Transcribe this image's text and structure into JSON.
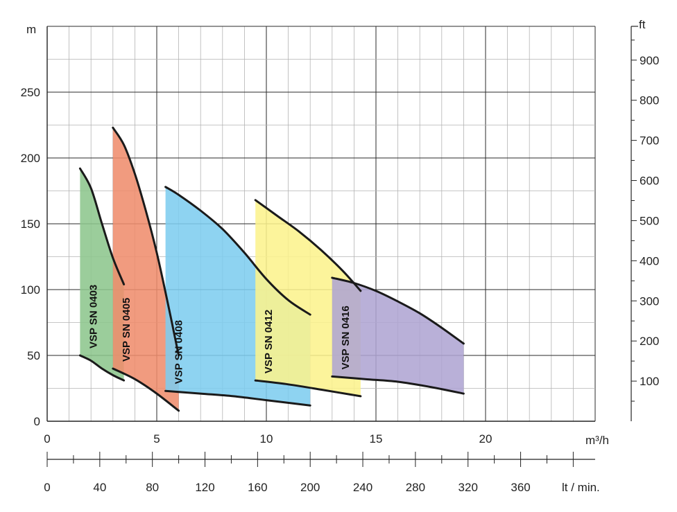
{
  "chart_data": {
    "type": "area",
    "x_unit": "m³/h",
    "y_unit_left": "m",
    "y_unit_right": "ft",
    "x2_unit": "lt / min.",
    "xlim": [
      0,
      25
    ],
    "ylim": [
      0,
      300
    ],
    "x_ticks": [
      "0",
      "5",
      "10",
      "15",
      "20"
    ],
    "y_ticks": [
      "0",
      "50",
      "100",
      "150",
      "200",
      "250"
    ],
    "y_ticks_right": [
      "100",
      "200",
      "300",
      "400",
      "500",
      "600",
      "700",
      "800",
      "900"
    ],
    "x2_ticks": [
      "0",
      "40",
      "80",
      "120",
      "160",
      "200",
      "240",
      "280",
      "320",
      "360"
    ],
    "grid": true,
    "series": [
      {
        "name": "VSP SN 0403",
        "color": "#8cc68c",
        "top": [
          [
            1.5,
            192
          ],
          [
            2.0,
            177
          ],
          [
            2.5,
            150
          ],
          [
            3.0,
            124
          ],
          [
            3.5,
            104
          ]
        ],
        "bottom": [
          [
            1.5,
            50
          ],
          [
            2.0,
            46
          ],
          [
            2.5,
            40
          ],
          [
            3.0,
            35
          ],
          [
            3.5,
            31
          ]
        ]
      },
      {
        "name": "VSP SN 0405",
        "color": "#ef8c6c",
        "top": [
          [
            3.0,
            223
          ],
          [
            3.5,
            210
          ],
          [
            4.0,
            188
          ],
          [
            4.5,
            160
          ],
          [
            5.0,
            128
          ],
          [
            5.5,
            90
          ],
          [
            6.0,
            50
          ]
        ],
        "bottom": [
          [
            3.0,
            40
          ],
          [
            4.0,
            32
          ],
          [
            5.0,
            21
          ],
          [
            6.0,
            8
          ]
        ]
      },
      {
        "name": "VSP SN 0408",
        "color": "#7dcdef",
        "top": [
          [
            5.4,
            178
          ],
          [
            6.0,
            172
          ],
          [
            7.0,
            160
          ],
          [
            8.0,
            146
          ],
          [
            9.0,
            128
          ],
          [
            10.0,
            108
          ],
          [
            11.0,
            92
          ],
          [
            12.0,
            81
          ]
        ],
        "bottom": [
          [
            5.4,
            23
          ],
          [
            7.0,
            21
          ],
          [
            8.5,
            19
          ],
          [
            10.0,
            16
          ],
          [
            12.0,
            12
          ]
        ]
      },
      {
        "name": "VSP SN 0412",
        "color": "#fbf28c",
        "top": [
          [
            9.5,
            168
          ],
          [
            10.5,
            156
          ],
          [
            11.5,
            144
          ],
          [
            12.5,
            130
          ],
          [
            13.5,
            114
          ],
          [
            14.3,
            99
          ]
        ],
        "bottom": [
          [
            9.5,
            31
          ],
          [
            11.0,
            28
          ],
          [
            12.5,
            24
          ],
          [
            14.3,
            19
          ]
        ]
      },
      {
        "name": "VSP SN 0416",
        "color": "#afa4d2",
        "top": [
          [
            13.0,
            109
          ],
          [
            14.0,
            105
          ],
          [
            15.0,
            99
          ],
          [
            16.0,
            91
          ],
          [
            17.0,
            82
          ],
          [
            18.0,
            71
          ],
          [
            19.0,
            59
          ]
        ],
        "bottom": [
          [
            13.0,
            34
          ],
          [
            14.5,
            32
          ],
          [
            16.0,
            30
          ],
          [
            17.5,
            26
          ],
          [
            19.0,
            21
          ]
        ]
      }
    ]
  }
}
